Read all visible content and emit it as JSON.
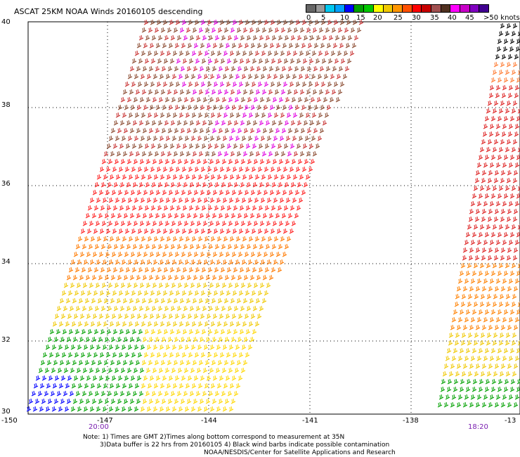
{
  "title": "ASCAT 25KM NOAA Winds 20160105 descending",
  "legend": {
    "colors": [
      "#666666",
      "#999999",
      "#00c8f0",
      "#00a0ff",
      "#0000ff",
      "#00a000",
      "#00c800",
      "#ffff00",
      "#f0c800",
      "#ff9600",
      "#ff5000",
      "#ff0000",
      "#c80000",
      "#a05050",
      "#503020",
      "#ff00ff",
      "#c800c8",
      "#8000c0",
      "#400090"
    ],
    "labels": [
      "0",
      "5",
      "10",
      "15",
      "20",
      "25",
      "30",
      "35",
      "40",
      "45",
      ">50 knots"
    ]
  },
  "axes": {
    "y_ticks": [
      "40",
      "38",
      "36",
      "34",
      "32",
      "30"
    ],
    "x_ticks": [
      "-150",
      "-147",
      "-144",
      "-141",
      "-138",
      "-13"
    ]
  },
  "times": [
    "20:00",
    "18:20"
  ],
  "notes": [
    "Note: 1) Times are GMT 2)Times along bottom correspond to measurement at 35N",
    "3)Data buffer is 22 hrs from 20160105 4) Black wind barbs indicate possible contamination",
    "NOAA/NESDIS/Center for Satellite Applications and Research"
  ]
}
